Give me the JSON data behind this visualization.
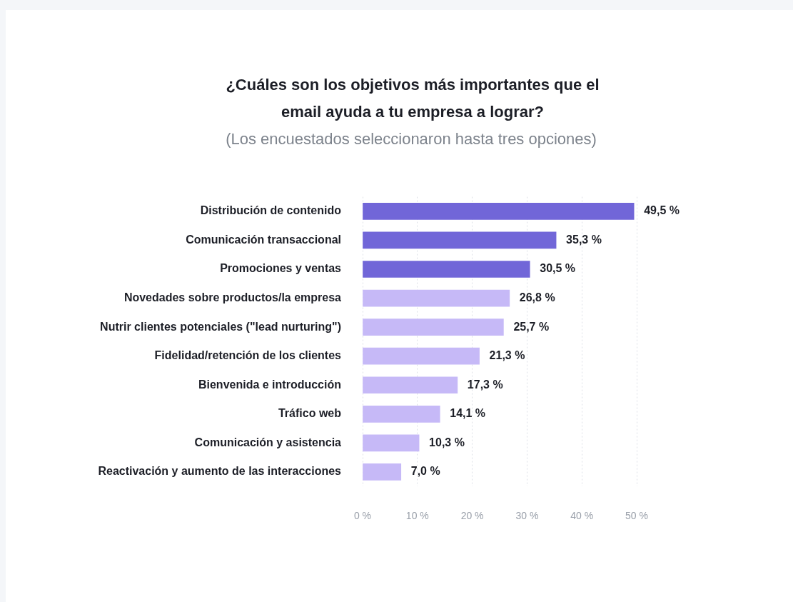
{
  "chart_data": {
    "type": "bar",
    "orientation": "horizontal",
    "title": "¿Cuáles son los objetivos más importantes que el email ayuda a tu empresa a lograr?",
    "subtitle": "(Los encuestados seleccionaron hasta tres opciones)",
    "categories": [
      "Distribución de contenido",
      "Comunicación transaccional",
      "Promociones y ventas",
      "Novedades sobre productos/la empresa",
      "Nutrir clientes potenciales (\"lead nurturing\")",
      "Fidelidad/retención de los clientes",
      "Bienvenida e introducción",
      "Tráfico web",
      "Comunicación y asistencia",
      "Reactivación y aumento de las interacciones"
    ],
    "values": [
      49.5,
      35.3,
      30.5,
      26.8,
      25.7,
      21.3,
      17.3,
      14.1,
      10.3,
      7.0
    ],
    "value_labels": [
      "49,5 %",
      "35,3 %",
      "30,5 %",
      "26,8 %",
      "25,7 %",
      "21,3 %",
      "17,3 %",
      "14,1 %",
      "10,3 %",
      "7,0 %"
    ],
    "colors": [
      "#7166d8",
      "#7166d8",
      "#7166d8",
      "#c6b9f7",
      "#c6b9f7",
      "#c6b9f7",
      "#c6b9f7",
      "#c6b9f7",
      "#c6b9f7",
      "#c6b9f7"
    ],
    "xlim": [
      0,
      50
    ],
    "xticks": [
      {
        "value": 0,
        "label": "0 %"
      },
      {
        "value": 10,
        "label": "10 %"
      },
      {
        "value": 20,
        "label": "20 %"
      },
      {
        "value": 30,
        "label": "30 %"
      },
      {
        "value": 40,
        "label": "40 %"
      },
      {
        "value": 50,
        "label": "50 %"
      }
    ],
    "grid": "x",
    "legend": false
  }
}
